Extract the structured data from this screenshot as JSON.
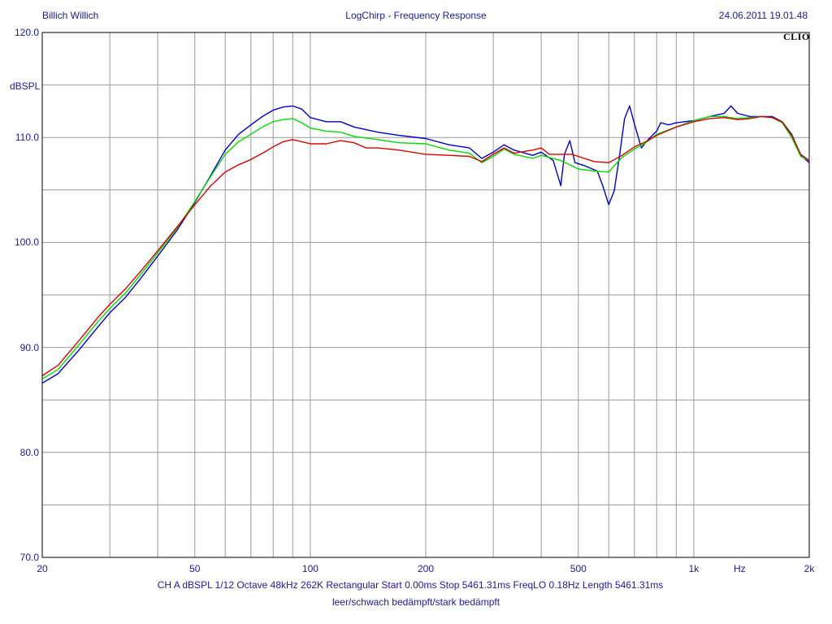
{
  "header": {
    "left": "Billich Willich",
    "center": "LogChirp - Frequency Response",
    "right": "24.06.2011 19.01.48",
    "logo": "CLIO"
  },
  "footer": {
    "line1": "CH A    dBSPL    1/12 Octave    48kHz    262K    Rectangular    Start 0.00ms    Stop 5461.31ms    FreqLO 0.18Hz    Length 5461.31ms",
    "line2": "leer/schwach bedämpft/stark bedämpft"
  },
  "chart_data": {
    "type": "line",
    "ylabel": "dBSPL",
    "xunit": "Hz",
    "xscale": "log",
    "xlim": [
      20,
      2000
    ],
    "ylim": [
      70,
      120
    ],
    "grid": true,
    "x_ticks": [
      {
        "value": 20,
        "label": "20"
      },
      {
        "value": 50,
        "label": "50"
      },
      {
        "value": 100,
        "label": "100"
      },
      {
        "value": 200,
        "label": "200"
      },
      {
        "value": 500,
        "label": "500"
      },
      {
        "value": 1000,
        "label": "1k"
      },
      {
        "value": 2000,
        "label": "2k"
      }
    ],
    "y_ticks": [
      {
        "value": 120,
        "label": "120.0"
      },
      {
        "value": 110,
        "label": "110.0"
      },
      {
        "value": 100,
        "label": "100.0"
      },
      {
        "value": 90,
        "label": "90.0"
      },
      {
        "value": 80,
        "label": "80.0"
      },
      {
        "value": 70,
        "label": "70.0"
      }
    ],
    "colors": {
      "grid": "#9a9a9a",
      "text": "#1a1aa0",
      "frame": "#000000"
    },
    "series": [
      {
        "color": "#0000cc",
        "points": [
          [
            20,
            86.6
          ],
          [
            22,
            87.5
          ],
          [
            25,
            89.8
          ],
          [
            28,
            92
          ],
          [
            30,
            93.3
          ],
          [
            33,
            94.8
          ],
          [
            36,
            96.5
          ],
          [
            40,
            98.7
          ],
          [
            45,
            101.2
          ],
          [
            50,
            103.8
          ],
          [
            55,
            106.4
          ],
          [
            60,
            108.8
          ],
          [
            65,
            110.3
          ],
          [
            70,
            111.2
          ],
          [
            75,
            112
          ],
          [
            80,
            112.6
          ],
          [
            85,
            112.9
          ],
          [
            90,
            113
          ],
          [
            95,
            112.7
          ],
          [
            100,
            111.9
          ],
          [
            110,
            111.5
          ],
          [
            120,
            111.5
          ],
          [
            130,
            111
          ],
          [
            150,
            110.5
          ],
          [
            170,
            110.2
          ],
          [
            200,
            109.9
          ],
          [
            230,
            109.3
          ],
          [
            260,
            109
          ],
          [
            280,
            108
          ],
          [
            300,
            108.6
          ],
          [
            320,
            109.3
          ],
          [
            340,
            108.8
          ],
          [
            380,
            108.3
          ],
          [
            400,
            108.6
          ],
          [
            430,
            107.8
          ],
          [
            450,
            105.4
          ],
          [
            460,
            108.4
          ],
          [
            475,
            109.7
          ],
          [
            490,
            107.6
          ],
          [
            520,
            107.3
          ],
          [
            560,
            106.8
          ],
          [
            580,
            105.3
          ],
          [
            600,
            103.6
          ],
          [
            620,
            104.9
          ],
          [
            640,
            108.2
          ],
          [
            660,
            111.8
          ],
          [
            680,
            113
          ],
          [
            700,
            111.3
          ],
          [
            730,
            109
          ],
          [
            760,
            109.8
          ],
          [
            800,
            110.6
          ],
          [
            820,
            111.4
          ],
          [
            860,
            111.2
          ],
          [
            900,
            111.4
          ],
          [
            1000,
            111.6
          ],
          [
            1100,
            112
          ],
          [
            1200,
            112.3
          ],
          [
            1250,
            113
          ],
          [
            1300,
            112.3
          ],
          [
            1400,
            112
          ],
          [
            1500,
            112
          ],
          [
            1600,
            112
          ],
          [
            1700,
            111.5
          ],
          [
            1800,
            110.3
          ],
          [
            1900,
            108.3
          ],
          [
            2000,
            107.6
          ]
        ]
      },
      {
        "color": "#00dd00",
        "points": [
          [
            20,
            87
          ],
          [
            22,
            87.9
          ],
          [
            25,
            90.3
          ],
          [
            28,
            92.5
          ],
          [
            30,
            93.7
          ],
          [
            33,
            95.2
          ],
          [
            36,
            96.9
          ],
          [
            40,
            99
          ],
          [
            45,
            101.4
          ],
          [
            50,
            103.9
          ],
          [
            55,
            106.3
          ],
          [
            60,
            108.4
          ],
          [
            65,
            109.6
          ],
          [
            70,
            110.3
          ],
          [
            75,
            111
          ],
          [
            80,
            111.5
          ],
          [
            85,
            111.7
          ],
          [
            90,
            111.8
          ],
          [
            95,
            111.4
          ],
          [
            100,
            110.9
          ],
          [
            110,
            110.6
          ],
          [
            120,
            110.5
          ],
          [
            130,
            110.1
          ],
          [
            150,
            109.8
          ],
          [
            170,
            109.5
          ],
          [
            200,
            109.4
          ],
          [
            230,
            108.8
          ],
          [
            260,
            108.5
          ],
          [
            280,
            107.6
          ],
          [
            300,
            108.2
          ],
          [
            320,
            108.9
          ],
          [
            340,
            108.4
          ],
          [
            380,
            108
          ],
          [
            400,
            108.3
          ],
          [
            450,
            107.8
          ],
          [
            500,
            107
          ],
          [
            550,
            106.8
          ],
          [
            600,
            106.7
          ],
          [
            620,
            107.3
          ],
          [
            650,
            108.1
          ],
          [
            700,
            108.9
          ],
          [
            750,
            109.5
          ],
          [
            800,
            110.3
          ],
          [
            900,
            111
          ],
          [
            1000,
            111.6
          ],
          [
            1100,
            112
          ],
          [
            1200,
            112
          ],
          [
            1300,
            111.8
          ],
          [
            1400,
            111.9
          ],
          [
            1500,
            112
          ],
          [
            1600,
            111.9
          ],
          [
            1700,
            111.4
          ],
          [
            1800,
            110
          ],
          [
            1900,
            108.2
          ],
          [
            2000,
            107.8
          ]
        ]
      },
      {
        "color": "#dd0000",
        "points": [
          [
            20,
            87.3
          ],
          [
            22,
            88.3
          ],
          [
            25,
            90.7
          ],
          [
            28,
            92.9
          ],
          [
            30,
            94.1
          ],
          [
            33,
            95.6
          ],
          [
            36,
            97.2
          ],
          [
            40,
            99.2
          ],
          [
            45,
            101.5
          ],
          [
            50,
            103.6
          ],
          [
            55,
            105.4
          ],
          [
            60,
            106.7
          ],
          [
            65,
            107.4
          ],
          [
            70,
            107.9
          ],
          [
            75,
            108.5
          ],
          [
            80,
            109.1
          ],
          [
            85,
            109.6
          ],
          [
            90,
            109.8
          ],
          [
            95,
            109.6
          ],
          [
            100,
            109.4
          ],
          [
            110,
            109.4
          ],
          [
            120,
            109.7
          ],
          [
            130,
            109.5
          ],
          [
            140,
            109
          ],
          [
            150,
            109
          ],
          [
            170,
            108.8
          ],
          [
            200,
            108.4
          ],
          [
            230,
            108.3
          ],
          [
            260,
            108.2
          ],
          [
            280,
            107.7
          ],
          [
            300,
            108.4
          ],
          [
            320,
            109
          ],
          [
            340,
            108.5
          ],
          [
            380,
            108.8
          ],
          [
            400,
            109
          ],
          [
            420,
            108.4
          ],
          [
            450,
            108.4
          ],
          [
            480,
            108.4
          ],
          [
            500,
            108.2
          ],
          [
            550,
            107.7
          ],
          [
            600,
            107.6
          ],
          [
            650,
            108.3
          ],
          [
            700,
            109.1
          ],
          [
            750,
            109.6
          ],
          [
            800,
            110.2
          ],
          [
            900,
            111
          ],
          [
            1000,
            111.5
          ],
          [
            1100,
            111.8
          ],
          [
            1200,
            111.9
          ],
          [
            1300,
            111.7
          ],
          [
            1400,
            111.8
          ],
          [
            1500,
            112
          ],
          [
            1600,
            111.9
          ],
          [
            1700,
            111.5
          ],
          [
            1800,
            110.2
          ],
          [
            1900,
            108.4
          ],
          [
            2000,
            107.8
          ]
        ]
      }
    ]
  }
}
